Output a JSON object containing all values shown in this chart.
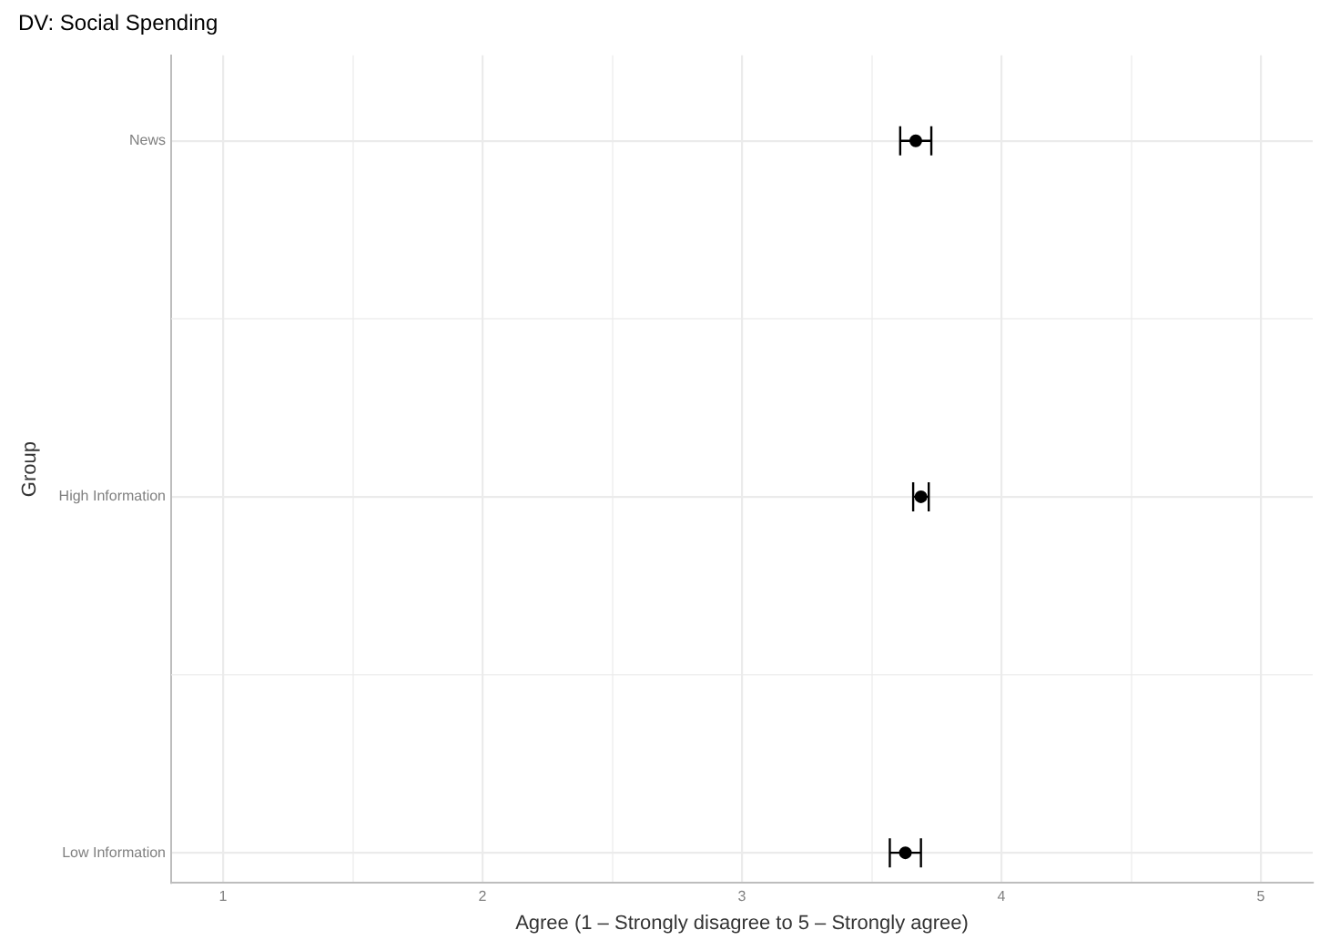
{
  "chart_data": {
    "type": "scatter",
    "orientation": "horizontal",
    "title": "DV: Social Spending",
    "xlabel": "Agree (1 – Strongly disagree to 5 – Strongly agree)",
    "ylabel": "Group",
    "categories": [
      "News",
      "High Information",
      "Low Information"
    ],
    "values": [
      3.67,
      3.69,
      3.63
    ],
    "errors": [
      [
        3.61,
        3.73
      ],
      [
        3.66,
        3.72
      ],
      [
        3.57,
        3.69
      ]
    ],
    "color": "#000000",
    "marker": "circle",
    "grid": true,
    "xlim": [
      0.8,
      5.2
    ],
    "xticks": [
      1,
      {
        "value": 1.5,
        "label": null
      },
      2,
      {
        "value": 2.5,
        "label": null
      },
      3,
      {
        "value": 3.5,
        "label": null
      },
      4,
      {
        "value": 4.5,
        "label": null
      },
      5
    ]
  }
}
